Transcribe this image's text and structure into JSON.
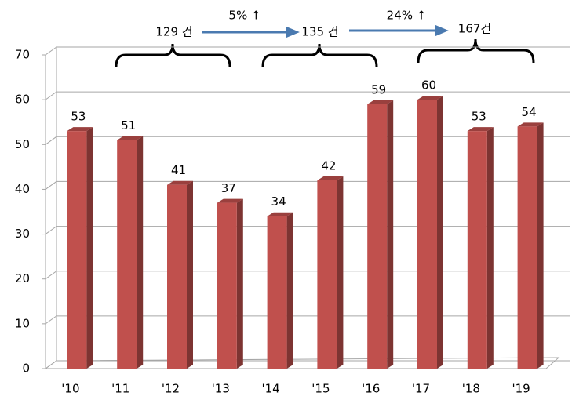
{
  "chart_data": {
    "type": "bar",
    "categories": [
      "'10",
      "'11",
      "'12",
      "'13",
      "'14",
      "'15",
      "'16",
      "'17",
      "'18",
      "'19"
    ],
    "values": [
      53,
      51,
      41,
      37,
      34,
      42,
      59,
      60,
      53,
      54
    ],
    "color": "#c0504d",
    "ylim": [
      0,
      70
    ],
    "yticks": [
      0,
      10,
      20,
      30,
      40,
      50,
      60,
      70
    ],
    "grid": true,
    "annotations": [
      "129 건",
      "5% ↑",
      "135 건",
      "24% ↑",
      "167건"
    ]
  }
}
